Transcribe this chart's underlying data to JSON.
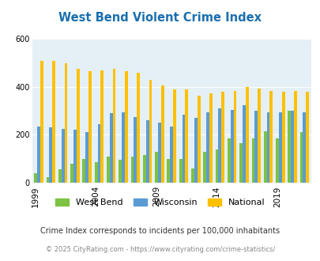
{
  "title": "West Bend Violent Crime Index",
  "title_color": "#1a6faf",
  "years": [
    1999,
    2000,
    2001,
    2002,
    2003,
    2004,
    2005,
    2006,
    2007,
    2008,
    2009,
    2010,
    2011,
    2012,
    2013,
    2014,
    2015,
    2016,
    2017,
    2018,
    2019,
    2020,
    2021
  ],
  "west_bend": [
    40,
    22,
    55,
    80,
    100,
    85,
    110,
    95,
    110,
    115,
    130,
    100,
    100,
    60,
    130,
    140,
    185,
    165,
    185,
    215,
    185,
    300,
    210
  ],
  "wisconsin": [
    235,
    230,
    225,
    220,
    210,
    245,
    290,
    295,
    275,
    260,
    250,
    235,
    285,
    270,
    295,
    310,
    305,
    325,
    300,
    295,
    295,
    300,
    295
  ],
  "national": [
    510,
    510,
    500,
    475,
    465,
    470,
    475,
    465,
    460,
    430,
    405,
    390,
    390,
    365,
    375,
    380,
    385,
    400,
    395,
    385,
    380,
    385,
    380
  ],
  "bar_colors": [
    "#7dc242",
    "#5b9bd5",
    "#ffc000"
  ],
  "bg_color": "#e4f0f5",
  "ylim": [
    0,
    600
  ],
  "yticks": [
    0,
    200,
    400,
    600
  ],
  "legend_labels": [
    "West Bend",
    "Wisconsin",
    "National"
  ],
  "footnote1": "Crime Index corresponds to incidents per 100,000 inhabitants",
  "footnote2": "© 2025 CityRating.com - https://www.cityrating.com/crime-statistics/",
  "footnote1_color": "#333333",
  "footnote2_color": "#888888",
  "tick_years": [
    1999,
    2004,
    2009,
    2014,
    2019
  ]
}
